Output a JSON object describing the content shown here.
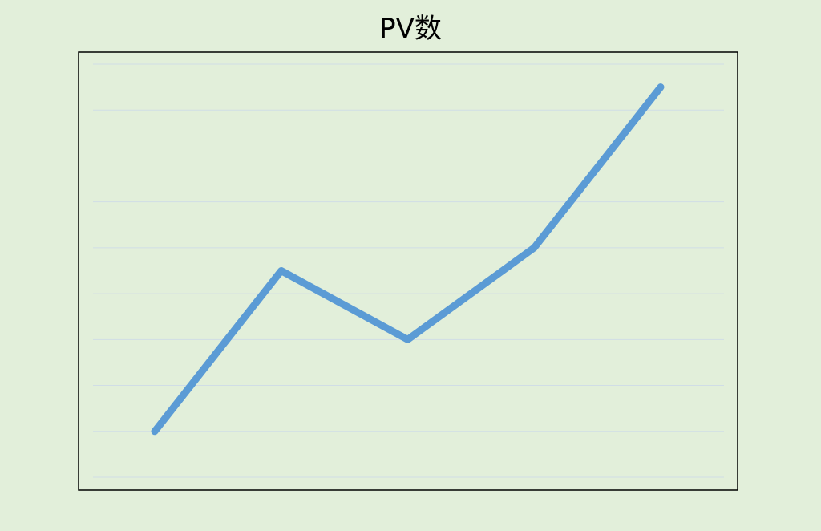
{
  "chart_data": {
    "type": "line",
    "title": "PV数",
    "xlabel": "",
    "ylabel": "",
    "x": [
      1,
      2,
      3,
      4,
      5
    ],
    "series": [
      {
        "values": [
          1,
          4.5,
          3,
          5,
          8.5
        ]
      }
    ],
    "ylim": [
      0,
      9
    ],
    "y_gridlines": [
      0,
      1,
      2,
      3,
      4,
      5,
      6,
      7,
      8,
      9
    ],
    "grid": true,
    "legend": "none",
    "show_tick_labels": false
  },
  "colors": {
    "background": "#e2efda",
    "line": "#5b9bd5",
    "grid": "#d0dde6",
    "frame": "#000000"
  }
}
